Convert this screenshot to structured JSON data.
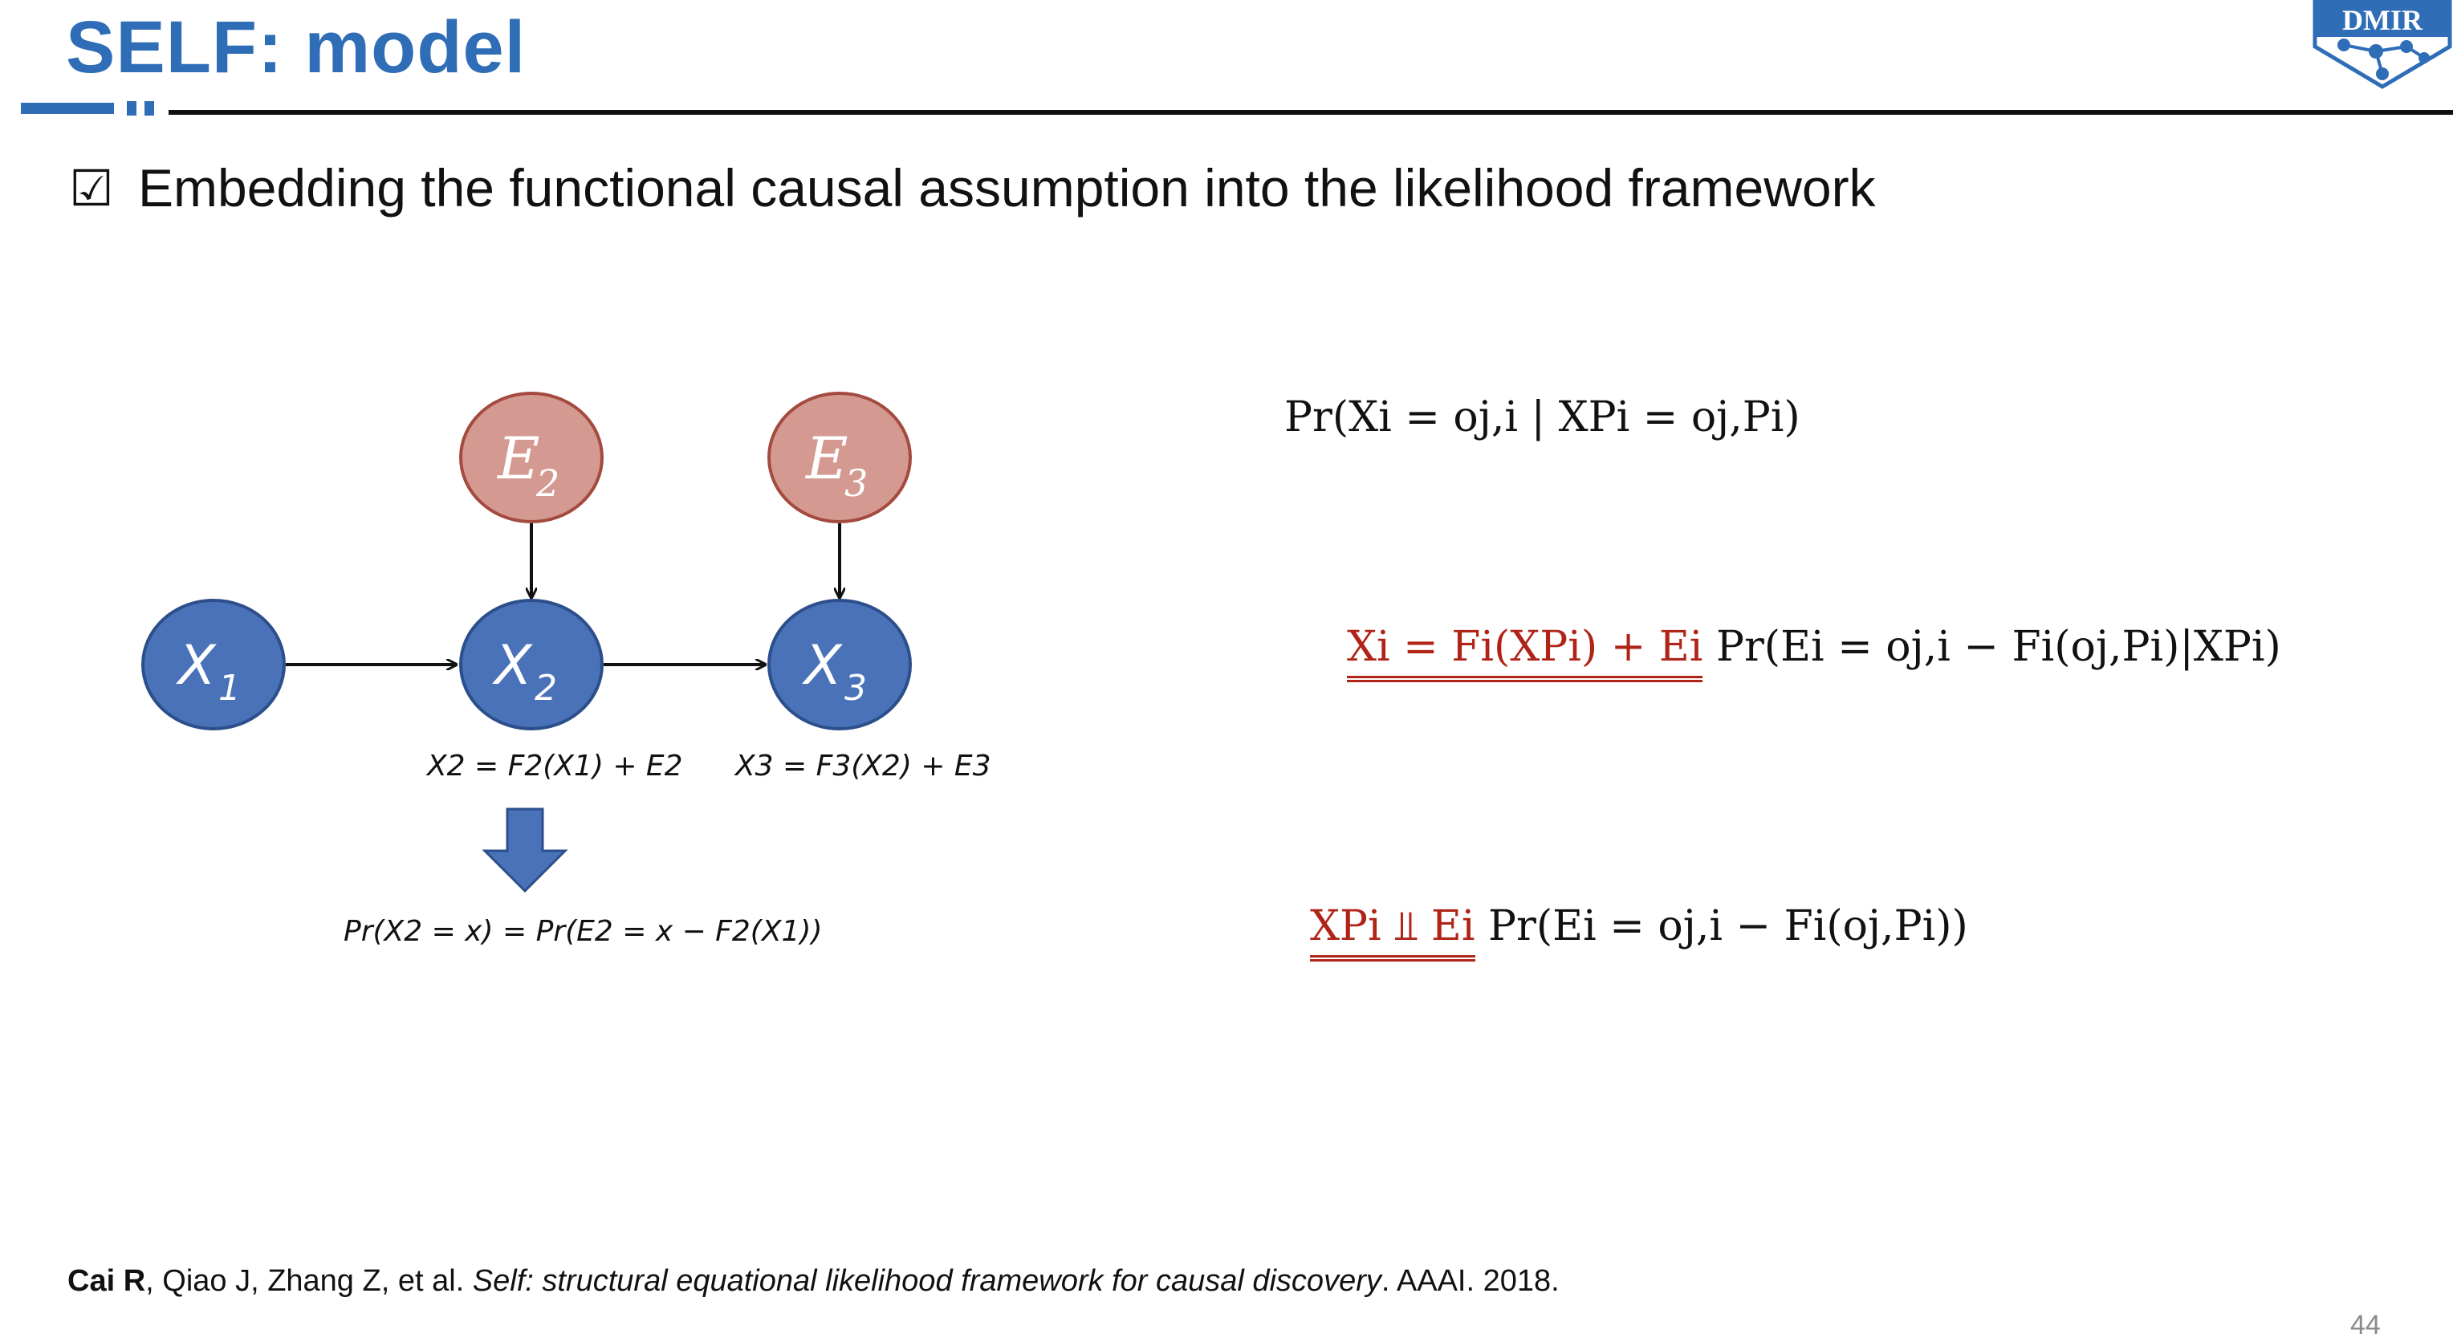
{
  "slide": {
    "title": "SELF: model",
    "logo_text": "DMIR",
    "page_number": "44",
    "colors": {
      "title_blue": "#2f6db6",
      "node_blue": "#4a72b8",
      "node_red": "#d49a92",
      "accent_red": "#b02418"
    }
  },
  "bullet": {
    "icon": "checkbox-checked-icon",
    "glyph": "☑",
    "text": "Embedding the functional causal assumption into the likelihood framework"
  },
  "diagram": {
    "nodes": [
      {
        "id": "E2",
        "base": "E",
        "sub": "2",
        "kind": "noise"
      },
      {
        "id": "E3",
        "base": "E",
        "sub": "3",
        "kind": "noise"
      },
      {
        "id": "X1",
        "base": "X",
        "sub": "1",
        "kind": "variable"
      },
      {
        "id": "X2",
        "base": "X",
        "sub": "2",
        "kind": "variable"
      },
      {
        "id": "X3",
        "base": "X",
        "sub": "3",
        "kind": "variable"
      }
    ],
    "edges": [
      {
        "from": "X1",
        "to": "X2"
      },
      {
        "from": "X2",
        "to": "X3"
      },
      {
        "from": "E2",
        "to": "X2"
      },
      {
        "from": "E3",
        "to": "X3"
      }
    ],
    "caption_x2": "X2 = F2(X1) + E2",
    "caption_x3": "X3 = F3(X2) + E3",
    "caption_bottom": "Pr(X2 = x) = Pr(E2 = x − F2(X1))"
  },
  "equations": {
    "eq1": "Pr(Xi = oj,i | XPi = oj,Pi)",
    "eq2_highlight": "Xi = Fi(XPi) + Ei",
    "eq2_rest": "Pr(Ei = oj,i − Fi(oj,Pi)|XPi)",
    "eq3_highlight": "XPi ⫫ Ei",
    "eq3_rest": "Pr(Ei = oj,i − Fi(oj,Pi))"
  },
  "reference": {
    "author_bold": "Cai R",
    "authors_rest": ", Qiao J, Zhang Z, et al. ",
    "title_italic": "Self: structural equational likelihood framework for causal discovery",
    "venue": ". AAAI. 2018."
  }
}
